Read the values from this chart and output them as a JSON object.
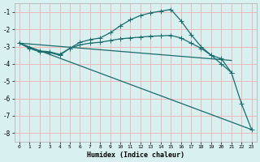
{
  "xlabel": "Humidex (Indice chaleur)",
  "bg_color": "#d8f0f0",
  "grid_color": "#f0b0b0",
  "line_color": "#1a6b6b",
  "xlim": [
    -0.5,
    23.5
  ],
  "ylim": [
    -8.5,
    -0.5
  ],
  "xticks": [
    0,
    1,
    2,
    3,
    4,
    5,
    6,
    7,
    8,
    9,
    10,
    11,
    12,
    13,
    14,
    15,
    16,
    17,
    18,
    19,
    20,
    21,
    22,
    23
  ],
  "yticks": [
    -8,
    -7,
    -6,
    -5,
    -4,
    -3,
    -2,
    -1
  ],
  "line1_marked": {
    "x": [
      0,
      1,
      2,
      3,
      4,
      5,
      6,
      7,
      8,
      9,
      10,
      11,
      12,
      13,
      14,
      15,
      16,
      17,
      18,
      19,
      20,
      21,
      22,
      23
    ],
    "y": [
      -2.8,
      -3.1,
      -3.3,
      -3.35,
      -3.5,
      -3.1,
      -2.75,
      -2.6,
      -2.5,
      -2.2,
      -1.8,
      -1.45,
      -1.2,
      -1.05,
      -0.95,
      -0.85,
      -1.5,
      -2.3,
      -3.0,
      -3.5,
      -4.0,
      -4.5,
      -6.3,
      -7.8
    ]
  },
  "line2_marked": {
    "x": [
      0,
      1,
      2,
      3,
      4,
      5,
      6,
      7,
      8,
      9,
      10,
      11,
      12,
      13,
      14,
      15,
      16,
      17,
      18,
      19,
      20,
      21
    ],
    "y": [
      -2.8,
      -3.05,
      -3.25,
      -3.3,
      -3.45,
      -3.1,
      -2.9,
      -2.8,
      -2.75,
      -2.65,
      -2.55,
      -2.5,
      -2.45,
      -2.4,
      -2.38,
      -2.35,
      -2.5,
      -2.8,
      -3.1,
      -3.5,
      -3.7,
      -4.5
    ]
  },
  "line3_flat": {
    "x": [
      0,
      21
    ],
    "y": [
      -2.8,
      -3.8
    ]
  },
  "line4_diagonal": {
    "x": [
      0,
      23
    ],
    "y": [
      -2.8,
      -7.8
    ]
  }
}
